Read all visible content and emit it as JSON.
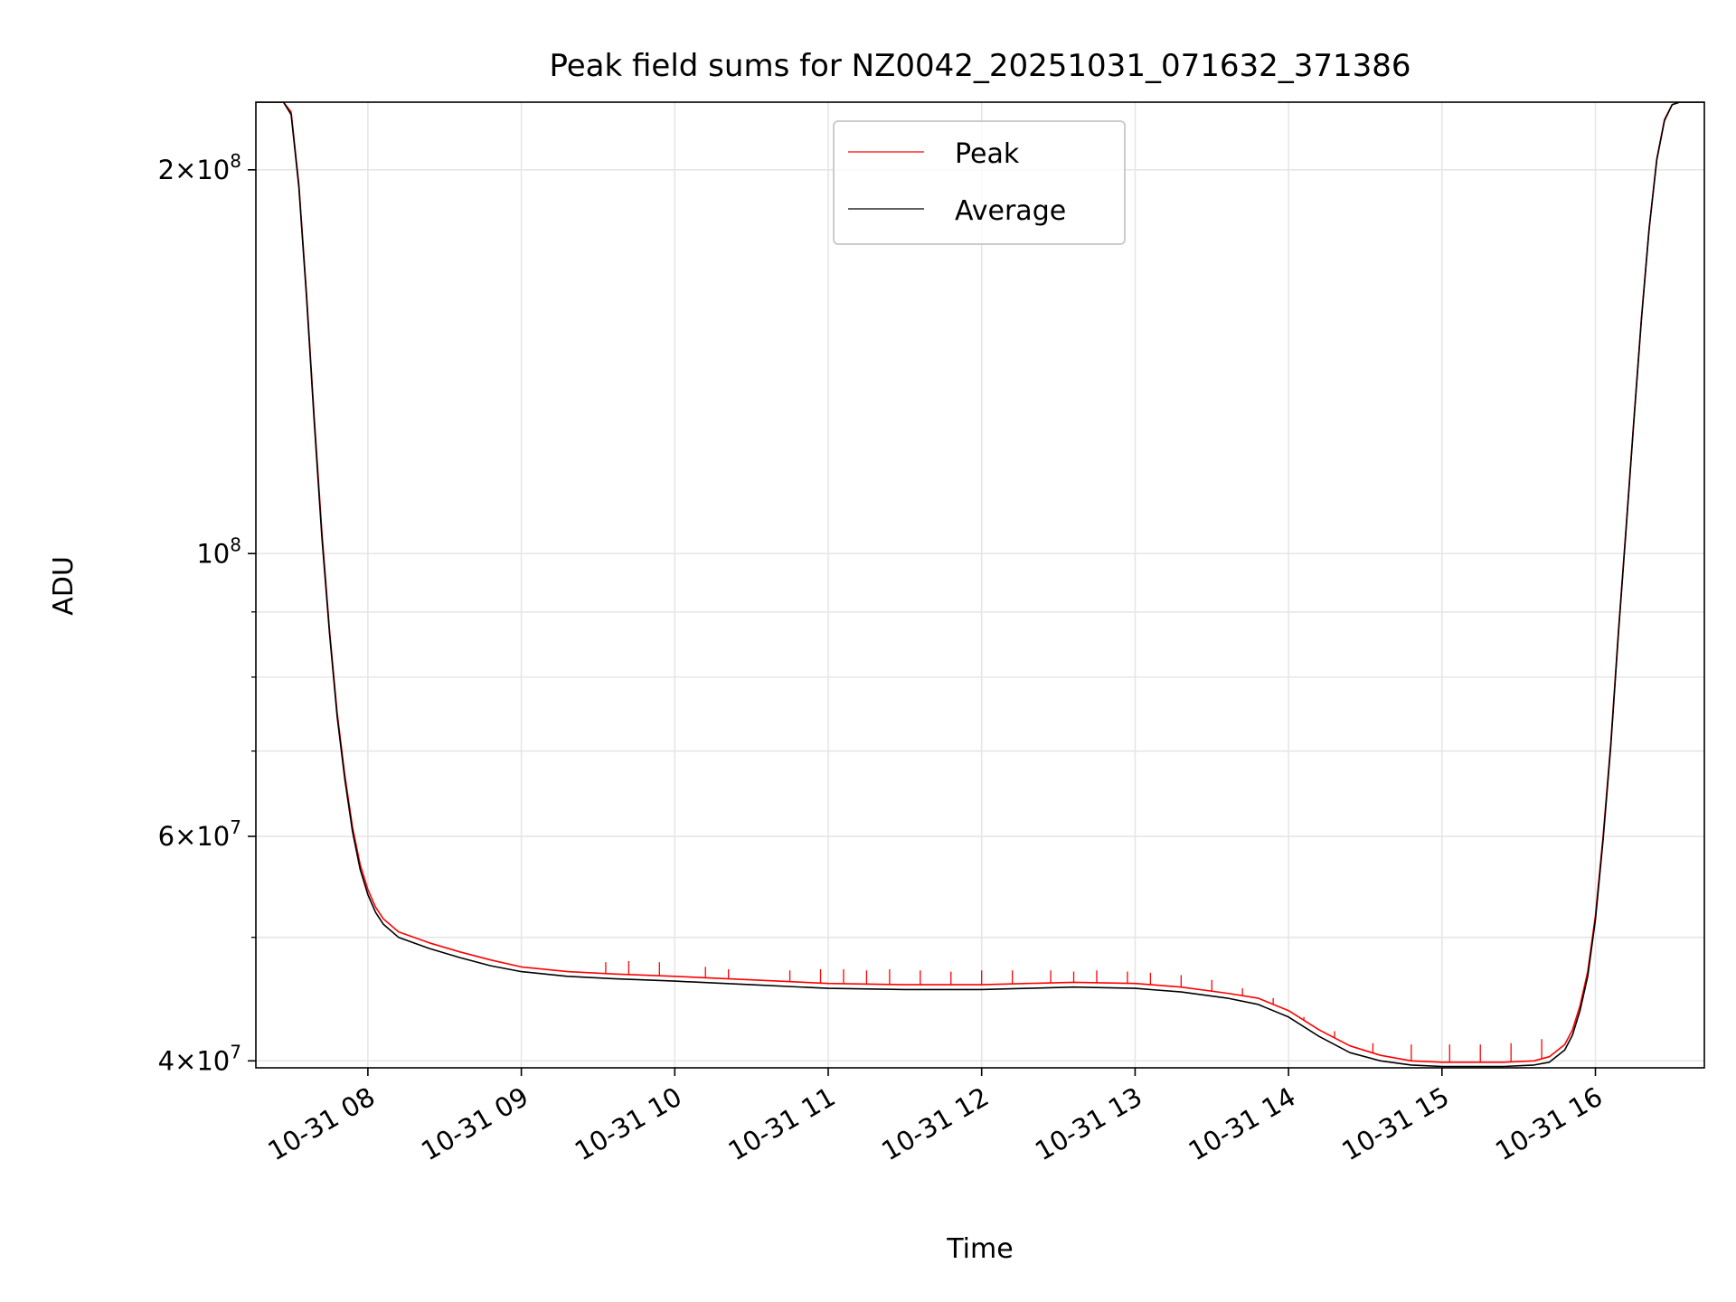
{
  "chart_data": {
    "type": "line",
    "title": "Peak field sums for NZ0042_20251031_071632_371386",
    "xlabel": "Time",
    "ylabel": "ADU",
    "y_scale": "log",
    "ylim": [
      39500000,
      226000000
    ],
    "x_range_hours": [
      7.27,
      16.71
    ],
    "grid": true,
    "legend_location": "upper center",
    "x_ticks": [
      {
        "value": 8,
        "label": "10-31 08"
      },
      {
        "value": 9,
        "label": "10-31 09"
      },
      {
        "value": 10,
        "label": "10-31 10"
      },
      {
        "value": 11,
        "label": "10-31 11"
      },
      {
        "value": 12,
        "label": "10-31 12"
      },
      {
        "value": 13,
        "label": "10-31 13"
      },
      {
        "value": 14,
        "label": "10-31 14"
      },
      {
        "value": 15,
        "label": "10-31 15"
      },
      {
        "value": 16,
        "label": "10-31 16"
      }
    ],
    "y_major_ticks": [
      {
        "value": 40000000,
        "mantissa": "4",
        "exponent": "7"
      },
      {
        "value": 60000000,
        "mantissa": "6",
        "exponent": "7"
      },
      {
        "value": 100000000,
        "mantissa": "",
        "exponent": "8"
      },
      {
        "value": 200000000,
        "mantissa": "2",
        "exponent": "8"
      }
    ],
    "y_minor_ticks": [
      50000000,
      70000000,
      80000000,
      90000000
    ],
    "series": [
      {
        "name": "Peak",
        "color": "#ff0000",
        "time_hours": [
          7.27,
          7.45,
          7.5,
          7.55,
          7.6,
          7.65,
          7.7,
          7.75,
          7.8,
          7.85,
          7.9,
          7.95,
          8.0,
          8.05,
          8.1,
          8.2,
          8.4,
          8.6,
          8.8,
          9.0,
          9.3,
          9.6,
          10.0,
          10.5,
          11.0,
          11.5,
          12.0,
          12.3,
          12.6,
          13.0,
          13.3,
          13.6,
          13.8,
          14.0,
          14.2,
          14.4,
          14.6,
          14.8,
          15.0,
          15.2,
          15.4,
          15.6,
          15.7,
          15.8,
          15.85,
          15.9,
          15.95,
          16.0,
          16.05,
          16.1,
          16.15,
          16.2,
          16.25,
          16.3,
          16.35,
          16.4,
          16.45,
          16.5,
          16.55,
          16.71
        ],
        "values": [
          226000000,
          226000000,
          222000000,
          195000000,
          160000000,
          128000000,
          104000000,
          87000000,
          75000000,
          67000000,
          61000000,
          57000000,
          54500000,
          52800000,
          51700000,
          50500000,
          49500000,
          48700000,
          48000000,
          47400000,
          47000000,
          46800000,
          46600000,
          46300000,
          46000000,
          45900000,
          45900000,
          46000000,
          46100000,
          46000000,
          45700000,
          45200000,
          44800000,
          43800000,
          42300000,
          41100000,
          40400000,
          40000000,
          39900000,
          39900000,
          39900000,
          40000000,
          40300000,
          41200000,
          42300000,
          44200000,
          47000000,
          52000000,
          60000000,
          71000000,
          87000000,
          105000000,
          127000000,
          153000000,
          180000000,
          204000000,
          219000000,
          225000000,
          226000000,
          226000000
        ],
        "spikes": [
          [
            9.55,
            47800000
          ],
          [
            9.7,
            47900000
          ],
          [
            9.9,
            47800000
          ],
          [
            10.2,
            47400000
          ],
          [
            10.35,
            47200000
          ],
          [
            10.75,
            47100000
          ],
          [
            10.95,
            47200000
          ],
          [
            11.1,
            47200000
          ],
          [
            11.25,
            47100000
          ],
          [
            11.4,
            47200000
          ],
          [
            11.6,
            47100000
          ],
          [
            11.8,
            47000000
          ],
          [
            12.0,
            47100000
          ],
          [
            12.2,
            47100000
          ],
          [
            12.45,
            47100000
          ],
          [
            12.6,
            47000000
          ],
          [
            12.75,
            47100000
          ],
          [
            12.95,
            47000000
          ],
          [
            13.1,
            46900000
          ],
          [
            13.3,
            46700000
          ],
          [
            13.5,
            46300000
          ],
          [
            13.7,
            45600000
          ],
          [
            13.9,
            44800000
          ],
          [
            14.1,
            43300000
          ],
          [
            14.3,
            42200000
          ],
          [
            14.55,
            41300000
          ],
          [
            14.8,
            41200000
          ],
          [
            15.05,
            41200000
          ],
          [
            15.25,
            41200000
          ],
          [
            15.45,
            41300000
          ],
          [
            15.65,
            41600000
          ]
        ]
      },
      {
        "name": "Average",
        "color": "#000000",
        "time_hours": [
          7.27,
          7.45,
          7.5,
          7.55,
          7.6,
          7.65,
          7.7,
          7.75,
          7.8,
          7.85,
          7.9,
          7.95,
          8.0,
          8.05,
          8.1,
          8.2,
          8.4,
          8.6,
          8.8,
          9.0,
          9.3,
          9.6,
          10.0,
          10.5,
          11.0,
          11.5,
          12.0,
          12.3,
          12.6,
          13.0,
          13.3,
          13.6,
          13.8,
          14.0,
          14.2,
          14.4,
          14.6,
          14.8,
          15.0,
          15.2,
          15.4,
          15.6,
          15.7,
          15.8,
          15.85,
          15.9,
          15.95,
          16.0,
          16.05,
          16.1,
          16.15,
          16.2,
          16.25,
          16.3,
          16.35,
          16.4,
          16.45,
          16.5,
          16.55,
          16.71
        ],
        "values": [
          226000000,
          226000000,
          221000000,
          194000000,
          159000000,
          127000000,
          103000000,
          86500000,
          74500000,
          66500000,
          60500000,
          56500000,
          54000000,
          52300000,
          51200000,
          50000000,
          49000000,
          48200000,
          47500000,
          47000000,
          46600000,
          46400000,
          46200000,
          45900000,
          45600000,
          45500000,
          45500000,
          45600000,
          45700000,
          45600000,
          45300000,
          44800000,
          44300000,
          43300000,
          41800000,
          40600000,
          40000000,
          39700000,
          39600000,
          39600000,
          39600000,
          39700000,
          39900000,
          40800000,
          41900000,
          43800000,
          46600000,
          51600000,
          59600000,
          70600000,
          86600000,
          104600000,
          126600000,
          152600000,
          179600000,
          203600000,
          218600000,
          225000000,
          226000000,
          226000000
        ]
      }
    ]
  }
}
